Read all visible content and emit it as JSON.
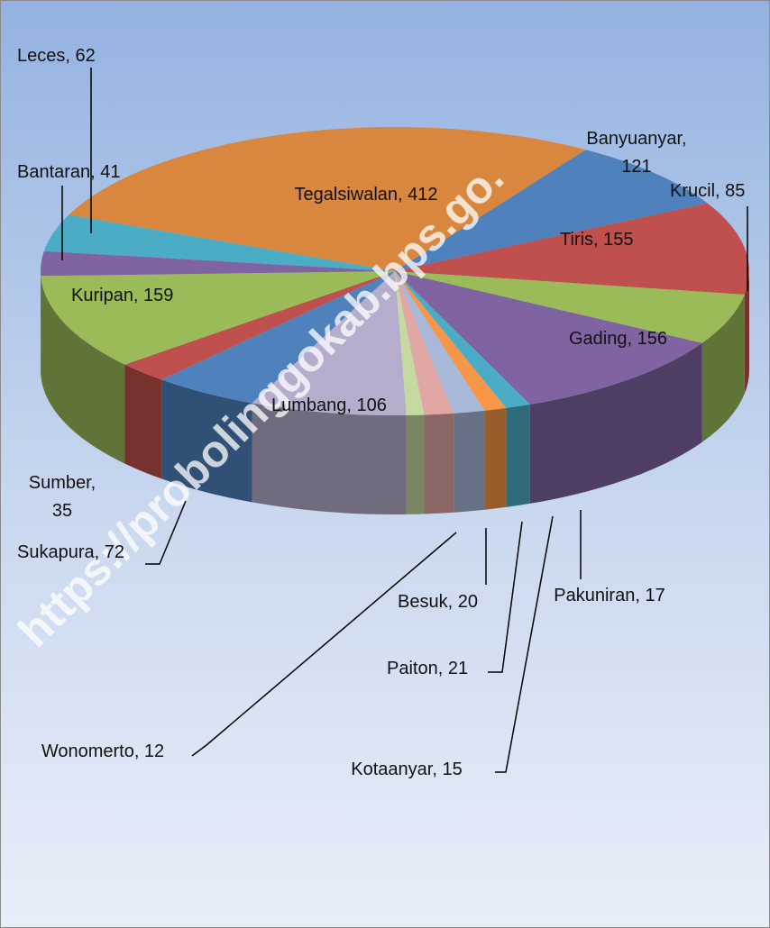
{
  "chart_data": {
    "type": "pie3d",
    "watermark": "https://probolinggokab.bps.go.",
    "categories": [
      "Tegalsiwalan",
      "Banyuanyar",
      "Tiris",
      "Krucil",
      "Gading",
      "Pakuniran",
      "Kotaanyar",
      "Paiton",
      "Besuk",
      "Wonomerto",
      "Lumbang",
      "Sukapura",
      "Sumber",
      "Kuripan",
      "Bantaran",
      "Leces"
    ],
    "values": [
      412,
      121,
      155,
      85,
      156,
      17,
      15,
      21,
      20,
      12,
      106,
      72,
      35,
      159,
      41,
      62
    ],
    "value_labels": [
      "Tegalsiwalan, 412",
      "Banyuanyar, 121",
      "Tiris, 155",
      "Krucil, 85",
      "Gading, 156",
      "Pakuniran, 17",
      "Kotaanyar, 15",
      "Paiton, 21",
      "Besuk, 20",
      "Wonomerto, 12",
      "Lumbang, 106",
      "Sukapura, 72",
      "Sumber, 35",
      "Kuripan, 159",
      "Bantaran, 41",
      "Leces, 62"
    ],
    "colors": [
      "#d9873f",
      "#4f81bd",
      "#c0504d",
      "#9bbb59",
      "#8064a2",
      "#4bacc6",
      "#f79646",
      "#a8b8d8",
      "#e0a7a5",
      "#c5d9a0",
      "#b6accb",
      "#4f81bd",
      "#c0504d",
      "#9bbb59",
      "#8064a2",
      "#4bacc6"
    ]
  }
}
